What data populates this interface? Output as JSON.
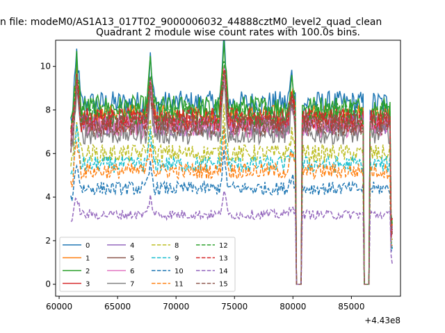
{
  "chart_data": {
    "type": "line",
    "suptitle": "n file: modeM0/AS1A13_017T02_9000006032_44888cztM0_level2_quad_clean",
    "title": "Quadrant 2 module wise count rates with 100.0s bins.",
    "xlabel": "",
    "ylabel": "",
    "x_offset_label": "+4.43e8",
    "xlim": [
      59700,
      89200
    ],
    "ylim": [
      -0.55,
      11.2
    ],
    "x_ticks": [
      60000,
      65000,
      70000,
      75000,
      80000,
      85000
    ],
    "y_ticks": [
      0,
      2,
      4,
      6,
      8,
      10
    ],
    "x_range": [
      61000,
      88500
    ],
    "bin_seconds": 100,
    "gaps": [
      {
        "start": 80250,
        "end": 80700
      },
      {
        "start": 86100,
        "end": 86550
      }
    ],
    "spikes": [
      {
        "x": 61500,
        "factor": 1.3
      },
      {
        "x": 67800,
        "factor": 1.24
      },
      {
        "x": 74100,
        "factor": 1.34
      },
      {
        "x": 79900,
        "factor": 1.16
      }
    ],
    "legend": {
      "location": "lower-left",
      "columns": 4
    },
    "series": [
      {
        "name": "0",
        "level": 8.3,
        "style": "solid",
        "color": "#1f77b4"
      },
      {
        "name": "1",
        "level": 7.7,
        "style": "solid",
        "color": "#ff7f0e"
      },
      {
        "name": "2",
        "level": 8.1,
        "style": "solid",
        "color": "#2ca02c"
      },
      {
        "name": "3",
        "level": 7.6,
        "style": "solid",
        "color": "#d62728"
      },
      {
        "name": "4",
        "level": 7.3,
        "style": "solid",
        "color": "#9467bd"
      },
      {
        "name": "5",
        "level": 7.4,
        "style": "solid",
        "color": "#8c564b"
      },
      {
        "name": "6",
        "level": 7.2,
        "style": "solid",
        "color": "#e377c2"
      },
      {
        "name": "7",
        "level": 6.9,
        "style": "solid",
        "color": "#7f7f7f"
      },
      {
        "name": "8",
        "level": 6.0,
        "style": "dashed",
        "color": "#bcbd22"
      },
      {
        "name": "9",
        "level": 5.5,
        "style": "dashed",
        "color": "#17becf"
      },
      {
        "name": "10",
        "level": 4.4,
        "style": "dashed",
        "color": "#1f77b4"
      },
      {
        "name": "11",
        "level": 5.2,
        "style": "dashed",
        "color": "#ff7f0e"
      },
      {
        "name": "12",
        "level": 7.8,
        "style": "dashed",
        "color": "#2ca02c"
      },
      {
        "name": "13",
        "level": 7.5,
        "style": "dashed",
        "color": "#d62728"
      },
      {
        "name": "14",
        "level": 3.2,
        "style": "dashed",
        "color": "#9467bd"
      },
      {
        "name": "15",
        "level": 7.3,
        "style": "dashed",
        "color": "#8c564b"
      }
    ]
  }
}
